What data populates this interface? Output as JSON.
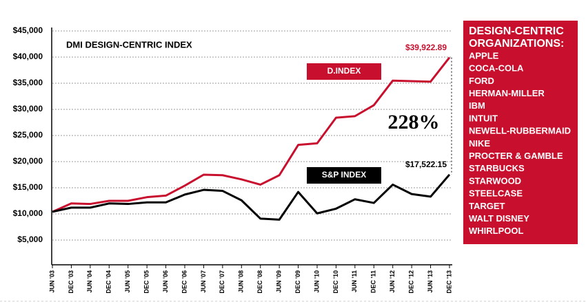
{
  "chart_data": {
    "type": "line",
    "title": "DMI DESIGN-CENTRIC INDEX",
    "categories": [
      "JUN '03",
      "DEC '03",
      "JUN '04",
      "DEC '04",
      "JUN '05",
      "DEC '05",
      "JUN '06",
      "DEC '06",
      "JUN '07",
      "DEC '07",
      "JUN '08",
      "DEC '08",
      "JUN '09",
      "DEC '09",
      "JUN '10",
      "DEC '10",
      "JUN '11",
      "DEC '11",
      "JUN '12",
      "DEC '12",
      "JUN '13",
      "DEC '13"
    ],
    "series": [
      {
        "name": "D.INDEX",
        "color": "#c8102e",
        "values": [
          10400,
          12000,
          11900,
          12500,
          12500,
          13200,
          13500,
          15400,
          17500,
          17400,
          16600,
          15600,
          17400,
          23200,
          23500,
          28400,
          28700,
          30800,
          35500,
          35400,
          35300,
          39922.89
        ],
        "value_labels": [
          null,
          null,
          null,
          null,
          null,
          null,
          null,
          null,
          null,
          null,
          null,
          null,
          null,
          null,
          null,
          null,
          null,
          null,
          null,
          null,
          null,
          "$39,922.89"
        ]
      },
      {
        "name": "S&P INDEX",
        "color": "#000000",
        "values": [
          10400,
          11200,
          11200,
          12000,
          11900,
          12200,
          12200,
          13700,
          14600,
          14400,
          12600,
          9100,
          8900,
          14200,
          10100,
          11000,
          12800,
          12100,
          15600,
          13800,
          13300,
          17522.15
        ],
        "value_labels": [
          null,
          null,
          null,
          null,
          null,
          null,
          null,
          null,
          null,
          null,
          null,
          null,
          null,
          null,
          null,
          null,
          null,
          null,
          null,
          null,
          null,
          "$17,522.15"
        ]
      }
    ],
    "annotation": "228%",
    "ylim": [
      0,
      45000
    ],
    "yticks": [
      {
        "value": 5000,
        "label": "$5,000"
      },
      {
        "value": 10000,
        "label": "$10,000"
      },
      {
        "value": 15000,
        "label": "$15,000"
      },
      {
        "value": 20000,
        "label": "$20,000"
      },
      {
        "value": 25000,
        "label": "$25,000"
      },
      {
        "value": 30000,
        "label": "$30,000"
      },
      {
        "value": 35000,
        "label": "$35,000"
      },
      {
        "value": 40000,
        "label": "$40,000"
      },
      {
        "value": 45000,
        "label": "$45,000"
      }
    ],
    "grid": true
  },
  "panel": {
    "title_lines": [
      "DESIGN-CENTRIC",
      "ORGANIZATIONS:"
    ],
    "items": [
      "APPLE",
      "COCA-COLA",
      "FORD",
      "HERMAN-MILLER",
      "IBM",
      "INTUIT",
      "NEWELL-RUBBERMAID",
      "NIKE",
      "PROCTER & GAMBLE",
      "STARBUCKS",
      "STARWOOD",
      "STEELCASE",
      "TARGET",
      "WALT DISNEY",
      "WHIRLPOOL"
    ]
  }
}
